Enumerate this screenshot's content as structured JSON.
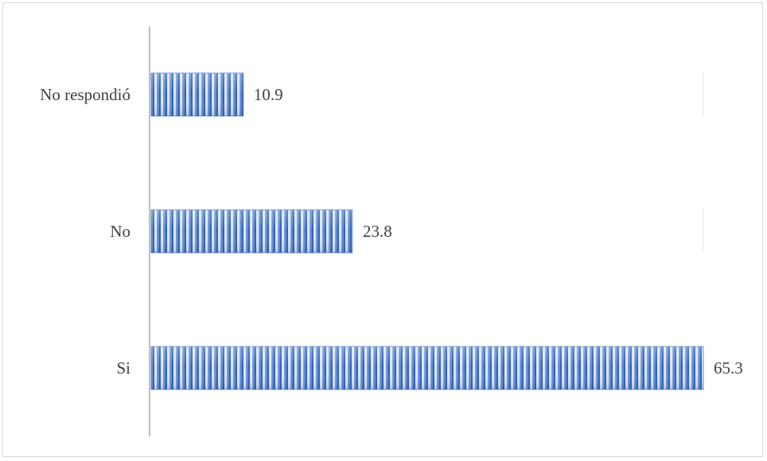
{
  "chart_data": {
    "type": "bar",
    "orientation": "horizontal",
    "categories": [
      "No respondió",
      "No",
      "Si"
    ],
    "values": [
      10.9,
      23.8,
      65.3
    ],
    "data_labels": [
      "10.9",
      "23.8",
      "65.3"
    ],
    "title": "",
    "xlabel": "",
    "ylabel": "",
    "xlim": [
      0,
      65.3
    ],
    "grid": false,
    "legend": "none",
    "bar_color": "#4f7fd0",
    "bar_stripe_color": "#c9d8f2",
    "label_color": "#404040"
  }
}
